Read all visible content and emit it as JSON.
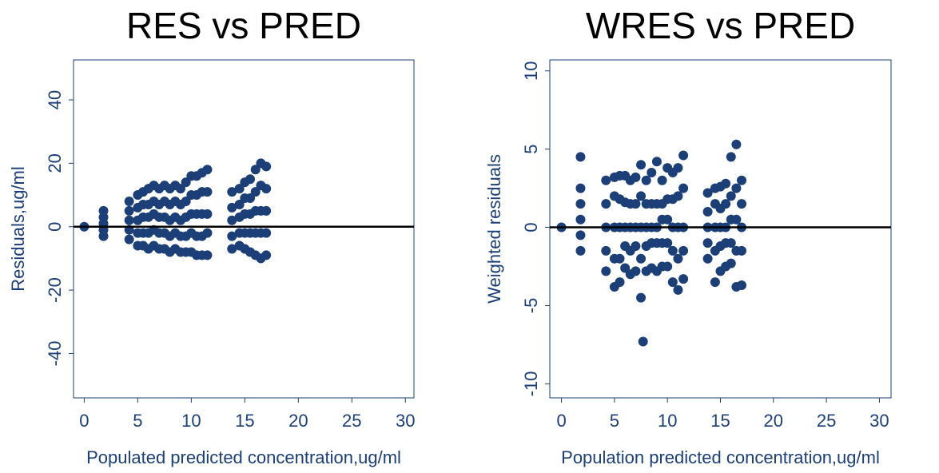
{
  "chart_data": [
    {
      "type": "scatter",
      "title": "RES vs PRED",
      "x_label": "Populated predicted concentration,ug/ml",
      "y_label": "Residuals,ug/ml",
      "color": "#1c3f78",
      "hline": 0,
      "xlim": [
        -1,
        30.8
      ],
      "ylim": [
        -54,
        52.6
      ],
      "xticks": [
        0,
        5,
        10,
        15,
        20,
        25,
        30
      ],
      "yticks": [
        -40,
        -20,
        0,
        20,
        40
      ],
      "x": [
        0,
        1.8,
        1.8,
        1.8,
        1.8,
        1.8,
        4.2,
        4.2,
        4.2,
        4.2,
        4.2,
        5,
        5,
        5,
        5,
        5,
        5.5,
        5.5,
        5.5,
        5.5,
        5.5,
        6,
        6,
        6,
        6,
        6,
        6.5,
        6.5,
        6.5,
        6.5,
        6.5,
        7,
        7,
        7,
        7,
        7,
        7.5,
        7.5,
        7.5,
        7.5,
        7.5,
        8,
        8,
        8,
        8,
        8,
        8.5,
        8.5,
        8.5,
        8.5,
        8.5,
        9,
        9,
        9,
        9,
        9,
        9.5,
        9.5,
        9.5,
        9.5,
        9.5,
        10,
        10,
        10,
        10,
        10,
        10.5,
        10.5,
        10.5,
        10.5,
        10.5,
        11,
        11,
        11,
        11,
        11,
        11.5,
        11.5,
        11.5,
        11.5,
        11.5,
        13.8,
        13.8,
        13.8,
        13.8,
        13.8,
        14.5,
        14.5,
        14.5,
        14.5,
        14.5,
        15,
        15,
        15,
        15,
        15,
        15.5,
        15.5,
        15.5,
        15.5,
        15.5,
        16,
        16,
        16,
        16,
        16,
        16.5,
        16.5,
        16.5,
        16.5,
        16.5,
        17,
        17,
        17,
        17,
        17
      ],
      "y": [
        0,
        -3,
        -1,
        1,
        3,
        5,
        -4,
        -1,
        2,
        5,
        8,
        -6,
        -2,
        2,
        6,
        10,
        -6,
        -2,
        3,
        7,
        11,
        -7,
        -2,
        3,
        7,
        12,
        -6,
        -1,
        4,
        8,
        13,
        -7,
        -2,
        3,
        7,
        12,
        -7,
        -2,
        3,
        8,
        13,
        -8,
        -3,
        2,
        7,
        12,
        -7,
        -2,
        3,
        8,
        13,
        -8,
        -3,
        2,
        7,
        12,
        -8,
        -3,
        3,
        8,
        14,
        -8,
        -2,
        4,
        10,
        16,
        -9,
        -3,
        4,
        10,
        16,
        -9,
        -3,
        4,
        11,
        17,
        -9,
        -2,
        4,
        11,
        18,
        -7,
        -3,
        2,
        6,
        11,
        -6,
        -2,
        3,
        7,
        12,
        -7,
        -2,
        4,
        9,
        14,
        -8,
        -2,
        4,
        9,
        15,
        -9,
        -2,
        5,
        11,
        18,
        -10,
        -2,
        5,
        13,
        20,
        -9,
        -2,
        5,
        12,
        19
      ]
    },
    {
      "type": "scatter",
      "title": "WRES vs PRED",
      "x_label": "Population predicted concentration,ug/ml",
      "y_label": "Weighted residuals",
      "color": "#1c3f78",
      "hline": 0,
      "xlim": [
        -1.1,
        31.1
      ],
      "ylim": [
        -10.9,
        10.7
      ],
      "xticks": [
        0,
        5,
        10,
        15,
        20,
        25,
        30
      ],
      "yticks": [
        -10,
        -5,
        0,
        5,
        10
      ],
      "x": [
        0,
        1.8,
        1.8,
        1.8,
        1.8,
        1.8,
        4.2,
        4.2,
        4.2,
        4.2,
        4.2,
        5,
        5,
        5,
        5,
        5,
        5.5,
        5.5,
        5.5,
        5.5,
        5.5,
        6,
        6,
        6,
        6,
        6,
        6.5,
        6.5,
        6.5,
        6.5,
        6.5,
        7,
        7,
        7,
        7,
        7,
        7.5,
        7.5,
        7.5,
        7.5,
        7.5,
        8,
        8,
        8,
        8,
        8,
        8.5,
        8.5,
        8.5,
        8.5,
        8.5,
        9,
        9,
        9,
        9,
        9,
        9.5,
        9.5,
        9.5,
        9.5,
        9.5,
        10,
        10,
        10,
        10,
        10,
        10.5,
        10.5,
        10.5,
        10.5,
        10.5,
        11,
        11,
        11,
        11,
        11,
        11.5,
        11.5,
        11.5,
        11.5,
        11.5,
        13.8,
        13.8,
        13.8,
        13.8,
        13.8,
        14.5,
        14.5,
        14.5,
        14.5,
        14.5,
        15,
        15,
        15,
        15,
        15,
        15.5,
        15.5,
        15.5,
        15.5,
        15.5,
        16,
        16,
        16,
        16,
        16,
        16.5,
        16.5,
        16.5,
        16.5,
        16.5,
        17,
        17,
        17,
        17,
        17,
        1.8,
        7.7
      ],
      "y": [
        0,
        -1.5,
        -0.5,
        0.5,
        1.5,
        2.5,
        -2.8,
        -1.5,
        0,
        1.5,
        3,
        -3.8,
        -2,
        0,
        2,
        3.2,
        -3.5,
        -2,
        0,
        1.8,
        3.3,
        -2.6,
        -1.2,
        0,
        1.6,
        3.3,
        -3,
        -1.5,
        0,
        1.5,
        3,
        -2.8,
        -1.2,
        0,
        1.5,
        3.2,
        -4.5,
        -2,
        0,
        2,
        4,
        -2.8,
        -1.2,
        0,
        1.5,
        3,
        -2.6,
        -1,
        0,
        1.5,
        3.5,
        -2.8,
        -1,
        0,
        1.5,
        4.2,
        -2.5,
        -1,
        0.5,
        1.5,
        3,
        -2.5,
        -1,
        0.5,
        1.8,
        3.8,
        -3.5,
        -1.5,
        0,
        1.8,
        3.5,
        -4,
        -2,
        0,
        2,
        3.8,
        -3.3,
        -1.5,
        0,
        2.5,
        4.6,
        -2,
        -1,
        0,
        1,
        2.2,
        -3.5,
        -1.5,
        0,
        1.5,
        2.5,
        -2.8,
        -1.2,
        0,
        1.2,
        2.6,
        -2.5,
        -1,
        0,
        1.5,
        2.8,
        -2.3,
        -1,
        0.5,
        2,
        4.5,
        -3.8,
        -1.5,
        0.5,
        2.5,
        5.3,
        -3.7,
        -1.5,
        0,
        1.5,
        3,
        4.5,
        -7.3
      ]
    }
  ]
}
